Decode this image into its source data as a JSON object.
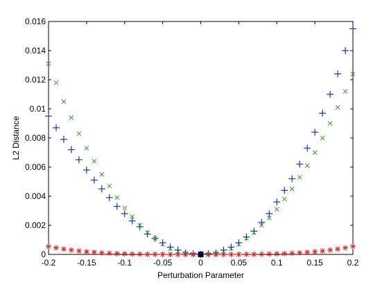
{
  "chart_data": {
    "type": "scatter",
    "xlabel": "Perturbation Parameter",
    "ylabel": "L2 Distance",
    "xlim": [
      -0.2,
      0.2
    ],
    "ylim": [
      0,
      0.016
    ],
    "x_ticks": [
      "-0.2",
      "-0.15",
      "-0.1",
      "-0.05",
      "0",
      "0.05",
      "0.1",
      "0.15",
      "0.2"
    ],
    "y_ticks": [
      "0",
      "0.002",
      "0.004",
      "0.006",
      "0.008",
      "0.01",
      "0.012",
      "0.014",
      "0.016"
    ],
    "grid": false,
    "colors": {
      "plus": "#1f2fa8",
      "cross": "#2e9e2e",
      "star": "#d42020",
      "square": "#000033"
    },
    "series": [
      {
        "marker": "+",
        "color_key": "plus",
        "x": [
          -0.2,
          -0.19,
          -0.18,
          -0.17,
          -0.16,
          -0.15,
          -0.14,
          -0.13,
          -0.12,
          -0.11,
          -0.1,
          -0.09,
          -0.08,
          -0.07,
          -0.06,
          -0.05,
          -0.04,
          -0.03,
          -0.02,
          -0.01,
          0,
          0.01,
          0.02,
          0.03,
          0.04,
          0.05,
          0.06,
          0.07,
          0.08,
          0.09,
          0.1,
          0.11,
          0.12,
          0.13,
          0.14,
          0.15,
          0.16,
          0.17,
          0.18,
          0.19,
          0.2
        ],
        "y": [
          0.0095,
          0.0087,
          0.0079,
          0.0072,
          0.0065,
          0.0058,
          0.0051,
          0.0045,
          0.0039,
          0.0033,
          0.0028,
          0.0023,
          0.0019,
          0.0014,
          0.0011,
          0.0008,
          0.0005,
          0.0003,
          0.0001,
          5e-05,
          0,
          5e-05,
          0.0001,
          0.0003,
          0.0005,
          0.0008,
          0.0012,
          0.0016,
          0.0022,
          0.0028,
          0.0036,
          0.0044,
          0.0052,
          0.0062,
          0.0073,
          0.0084,
          0.0097,
          0.011,
          0.0124,
          0.014,
          0.0155
        ]
      },
      {
        "marker": "x",
        "color_key": "cross",
        "x": [
          -0.2,
          -0.19,
          -0.18,
          -0.17,
          -0.16,
          -0.15,
          -0.14,
          -0.13,
          -0.12,
          -0.11,
          -0.1,
          -0.09,
          -0.08,
          -0.07,
          -0.06,
          -0.05,
          -0.04,
          -0.03,
          -0.02,
          -0.01,
          0,
          0.01,
          0.02,
          0.03,
          0.04,
          0.05,
          0.06,
          0.07,
          0.08,
          0.09,
          0.1,
          0.11,
          0.12,
          0.13,
          0.14,
          0.15,
          0.16,
          0.17,
          0.18,
          0.19,
          0.2
        ],
        "y": [
          0.0131,
          0.0118,
          0.0105,
          0.0094,
          0.0083,
          0.0073,
          0.0064,
          0.0055,
          0.0047,
          0.0039,
          0.0032,
          0.0026,
          0.002,
          0.0015,
          0.0011,
          0.0007,
          0.0004,
          0.0002,
          0.0001,
          2e-05,
          0,
          2e-05,
          0.0001,
          0.0002,
          0.0004,
          0.0007,
          0.0011,
          0.0015,
          0.002,
          0.0025,
          0.0031,
          0.0038,
          0.0045,
          0.0053,
          0.0061,
          0.007,
          0.008,
          0.009,
          0.0101,
          0.0112,
          0.0124
        ]
      },
      {
        "marker": "*",
        "color_key": "star",
        "x": [
          -0.2,
          -0.19,
          -0.18,
          -0.17,
          -0.16,
          -0.15,
          -0.14,
          -0.13,
          -0.12,
          -0.11,
          -0.1,
          -0.09,
          -0.08,
          -0.07,
          -0.06,
          -0.05,
          -0.04,
          -0.03,
          -0.02,
          -0.01,
          0,
          0.01,
          0.02,
          0.03,
          0.04,
          0.05,
          0.06,
          0.07,
          0.08,
          0.09,
          0.1,
          0.11,
          0.12,
          0.13,
          0.14,
          0.15,
          0.16,
          0.17,
          0.18,
          0.19,
          0.2
        ],
        "y": [
          0.00055,
          0.00045,
          0.00037,
          0.0003,
          0.00024,
          0.00019,
          0.00015,
          0.00011,
          8e-05,
          6e-05,
          4e-05,
          3e-05,
          2e-05,
          1e-05,
          1e-05,
          0,
          0,
          0,
          0,
          0,
          0,
          0,
          0,
          0,
          0,
          0,
          1e-05,
          1e-05,
          2e-05,
          3e-05,
          4e-05,
          6e-05,
          8e-05,
          0.00011,
          0.00015,
          0.00019,
          0.00024,
          0.0003,
          0.00037,
          0.00045,
          0.00055
        ]
      },
      {
        "marker": "square",
        "color_key": "square",
        "x": [
          0
        ],
        "y": [
          0
        ]
      }
    ]
  }
}
